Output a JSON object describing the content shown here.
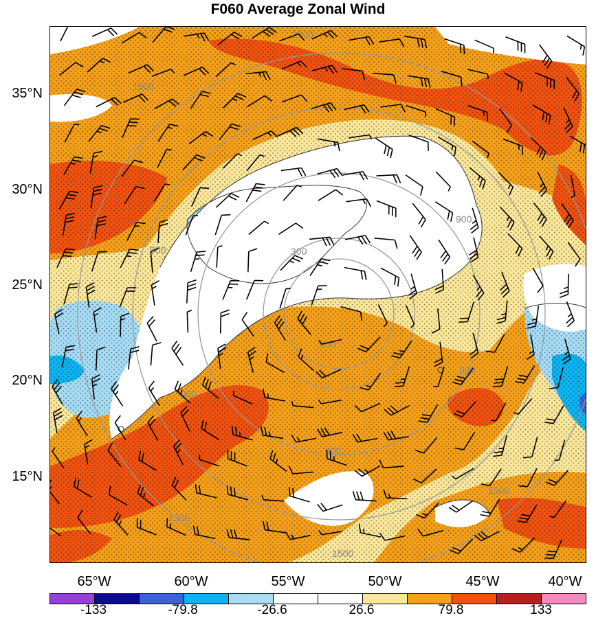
{
  "title": "F060 Average Zonal Wind",
  "latitude_labels": [
    "35°N",
    "30°N",
    "25°N",
    "20°N",
    "15°N"
  ],
  "longitude_labels": [
    "65°W",
    "60°W",
    "55°W",
    "50°W",
    "45°W",
    "40°W"
  ],
  "colorbar": {
    "colors": [
      "#9a3fd6",
      "#0b0b8e",
      "#3c63d6",
      "#0cb4f0",
      "#a6dcf5",
      "#ffffff",
      "#ffffff",
      "#fbe79a",
      "#f5a01a",
      "#f05210",
      "#b3201e",
      "#f58cbf"
    ],
    "labels": [
      "-133",
      "-79.8",
      "-26.6",
      "26.6",
      "79.8",
      "133"
    ]
  },
  "range_ring_labels": [
    "1500",
    "1500",
    "900",
    "900",
    "300",
    "300",
    "900",
    "900",
    "900",
    "1500",
    "1500",
    "1500"
  ],
  "fill_colors": {
    "yellow": "#fbe79a",
    "orange": "#f5a01a",
    "red": "#f05210",
    "light_blue": "#a6dcf5",
    "blue": "#0cb4f0",
    "dark_blue": "#3c63d6",
    "ring": "#999999"
  }
}
